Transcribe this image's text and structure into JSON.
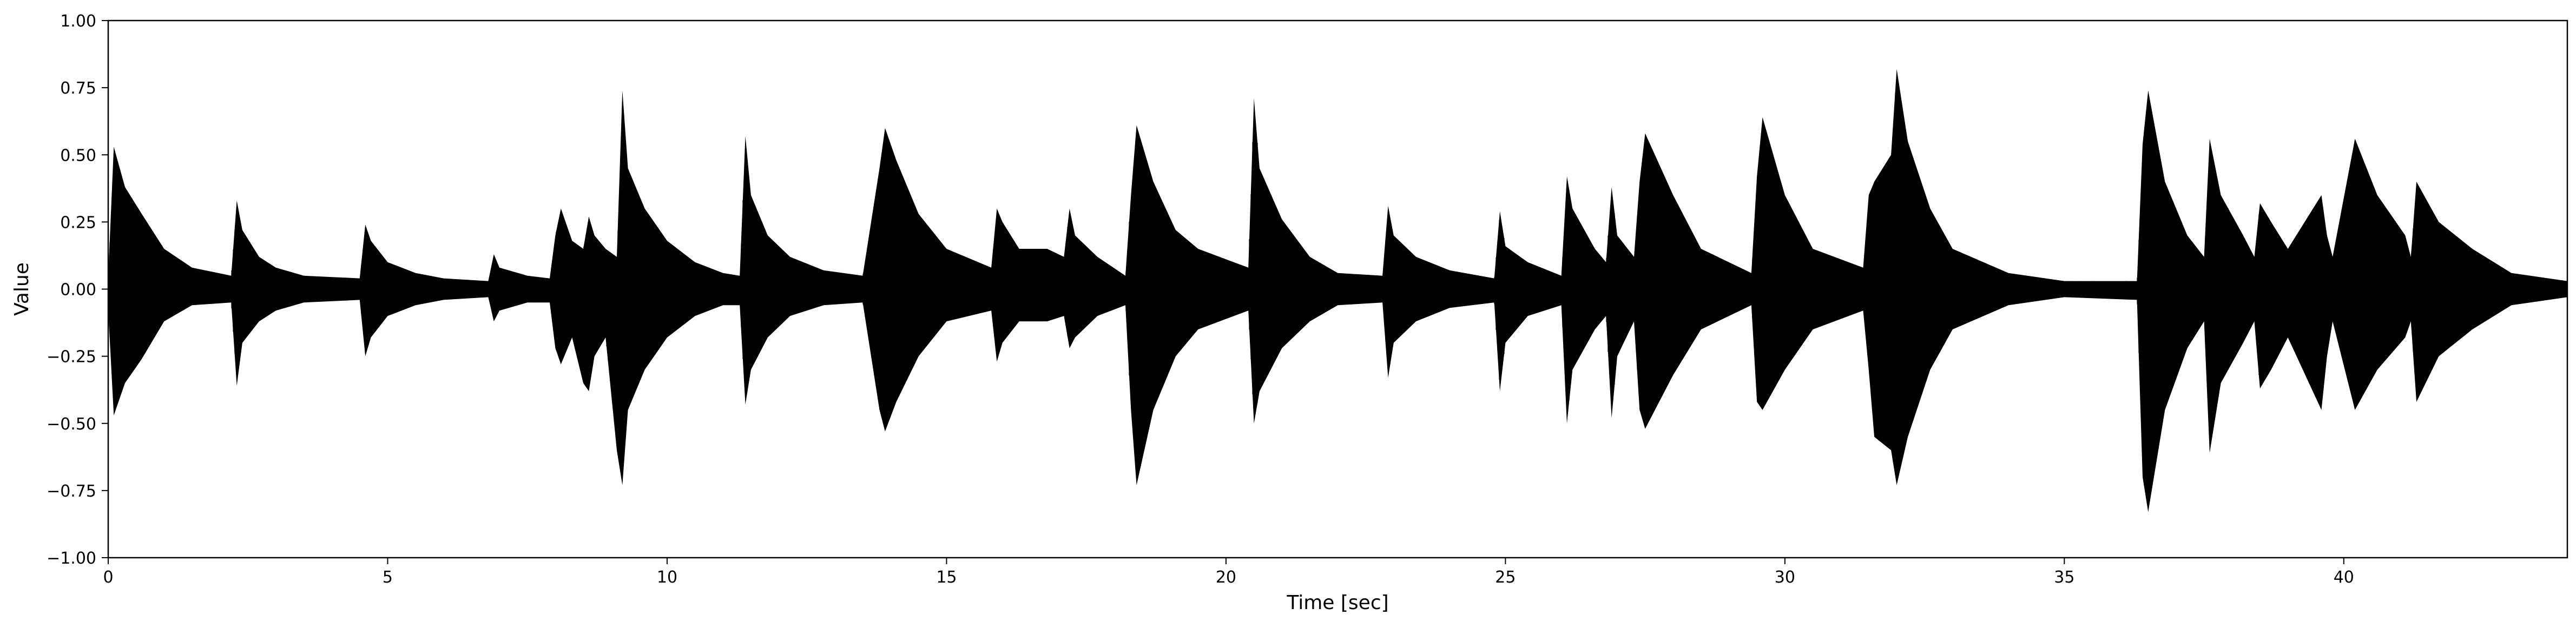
{
  "chart_data": {
    "type": "line",
    "title": "",
    "xlabel": "Time [sec]",
    "ylabel": "Value",
    "xlim": [
      0,
      44
    ],
    "ylim": [
      -1.0,
      1.0
    ],
    "grid": false,
    "legend": "none",
    "line_color": "#000000",
    "x_ticks": [
      0,
      5,
      10,
      15,
      20,
      25,
      30,
      35,
      40
    ],
    "x_tick_labels": [
      "0",
      "5",
      "10",
      "15",
      "20",
      "25",
      "30",
      "35",
      "40"
    ],
    "y_ticks": [
      -1.0,
      -0.75,
      -0.5,
      -0.25,
      0.0,
      0.25,
      0.5,
      0.75,
      1.0
    ],
    "y_tick_labels": [
      "−1.00",
      "−0.75",
      "−0.50",
      "−0.25",
      "0.00",
      "0.25",
      "0.50",
      "0.75",
      "1.00"
    ],
    "series": [
      {
        "x": [
          0.0,
          0.1,
          0.3,
          0.6,
          1.0,
          1.5,
          2.2,
          2.3,
          2.4,
          2.7,
          3.0,
          3.5,
          4.5,
          4.6,
          4.7,
          5.0,
          5.5,
          6.0,
          6.8,
          6.9,
          7.0,
          7.5,
          7.9,
          8.0,
          8.1,
          8.3,
          8.5,
          8.6,
          8.7,
          8.9,
          9.1,
          9.2,
          9.3,
          9.6,
          10.0,
          10.5,
          11.0,
          11.3,
          11.4,
          11.5,
          11.8,
          12.2,
          12.8,
          13.5,
          13.8,
          13.9,
          14.1,
          14.5,
          15.0,
          15.8,
          15.9,
          16.0,
          16.3,
          16.8,
          17.1,
          17.2,
          17.3,
          17.7,
          18.2,
          18.3,
          18.4,
          18.7,
          19.1,
          19.5,
          20.4,
          20.5,
          20.6,
          21.0,
          21.5,
          22.0,
          22.8,
          22.9,
          23.0,
          23.4,
          24.0,
          24.8,
          24.9,
          25.0,
          25.4,
          26.0,
          26.1,
          26.2,
          26.6,
          26.8,
          26.9,
          27.0,
          27.3,
          27.4,
          27.5,
          28.0,
          28.5,
          29.4,
          29.5,
          29.6,
          30.0,
          30.5,
          31.4,
          31.5,
          31.6,
          31.9,
          32.0,
          32.2,
          32.6,
          33.0,
          34.0,
          35.0,
          36.3,
          36.4,
          36.5,
          36.8,
          37.2,
          37.5,
          37.6,
          37.8,
          38.2,
          38.4,
          38.5,
          38.7,
          39.0,
          39.6,
          39.7,
          39.8,
          40.2,
          40.6,
          41.1,
          41.2,
          41.3,
          41.7,
          42.3,
          43.0,
          44.0
        ],
        "upper": [
          0.05,
          0.53,
          0.38,
          0.28,
          0.15,
          0.08,
          0.05,
          0.33,
          0.22,
          0.12,
          0.08,
          0.05,
          0.04,
          0.24,
          0.18,
          0.1,
          0.06,
          0.04,
          0.03,
          0.13,
          0.08,
          0.05,
          0.04,
          0.2,
          0.3,
          0.18,
          0.15,
          0.27,
          0.2,
          0.15,
          0.12,
          0.74,
          0.45,
          0.3,
          0.18,
          0.1,
          0.06,
          0.05,
          0.57,
          0.35,
          0.2,
          0.12,
          0.07,
          0.05,
          0.45,
          0.6,
          0.48,
          0.28,
          0.15,
          0.08,
          0.3,
          0.25,
          0.15,
          0.15,
          0.12,
          0.3,
          0.2,
          0.12,
          0.05,
          0.35,
          0.61,
          0.4,
          0.22,
          0.15,
          0.08,
          0.71,
          0.45,
          0.26,
          0.12,
          0.06,
          0.05,
          0.31,
          0.2,
          0.12,
          0.07,
          0.04,
          0.29,
          0.16,
          0.1,
          0.05,
          0.42,
          0.3,
          0.15,
          0.1,
          0.38,
          0.2,
          0.12,
          0.4,
          0.58,
          0.35,
          0.15,
          0.06,
          0.42,
          0.64,
          0.35,
          0.15,
          0.08,
          0.35,
          0.4,
          0.5,
          0.82,
          0.55,
          0.3,
          0.15,
          0.06,
          0.03,
          0.03,
          0.54,
          0.74,
          0.4,
          0.2,
          0.12,
          0.56,
          0.35,
          0.2,
          0.12,
          0.32,
          0.25,
          0.15,
          0.35,
          0.2,
          0.12,
          0.56,
          0.35,
          0.2,
          0.12,
          0.4,
          0.25,
          0.15,
          0.06,
          0.03
        ],
        "lower": [
          -0.08,
          -0.47,
          -0.35,
          -0.26,
          -0.12,
          -0.06,
          -0.05,
          -0.36,
          -0.2,
          -0.12,
          -0.08,
          -0.05,
          -0.04,
          -0.25,
          -0.18,
          -0.1,
          -0.06,
          -0.04,
          -0.03,
          -0.12,
          -0.08,
          -0.05,
          -0.05,
          -0.22,
          -0.28,
          -0.18,
          -0.35,
          -0.38,
          -0.25,
          -0.18,
          -0.6,
          -0.73,
          -0.45,
          -0.3,
          -0.18,
          -0.1,
          -0.06,
          -0.06,
          -0.43,
          -0.3,
          -0.18,
          -0.1,
          -0.06,
          -0.05,
          -0.45,
          -0.53,
          -0.42,
          -0.25,
          -0.12,
          -0.08,
          -0.27,
          -0.2,
          -0.12,
          -0.12,
          -0.1,
          -0.22,
          -0.18,
          -0.1,
          -0.06,
          -0.45,
          -0.73,
          -0.45,
          -0.25,
          -0.15,
          -0.08,
          -0.5,
          -0.38,
          -0.22,
          -0.12,
          -0.06,
          -0.05,
          -0.33,
          -0.2,
          -0.12,
          -0.07,
          -0.05,
          -0.38,
          -0.2,
          -0.1,
          -0.06,
          -0.5,
          -0.3,
          -0.15,
          -0.1,
          -0.48,
          -0.25,
          -0.12,
          -0.45,
          -0.52,
          -0.32,
          -0.15,
          -0.06,
          -0.42,
          -0.45,
          -0.3,
          -0.15,
          -0.08,
          -0.3,
          -0.55,
          -0.6,
          -0.73,
          -0.55,
          -0.3,
          -0.15,
          -0.06,
          -0.03,
          -0.04,
          -0.7,
          -0.83,
          -0.45,
          -0.22,
          -0.12,
          -0.61,
          -0.35,
          -0.2,
          -0.12,
          -0.37,
          -0.3,
          -0.18,
          -0.45,
          -0.25,
          -0.12,
          -0.45,
          -0.3,
          -0.18,
          -0.12,
          -0.42,
          -0.25,
          -0.15,
          -0.06,
          -0.03
        ]
      }
    ]
  }
}
